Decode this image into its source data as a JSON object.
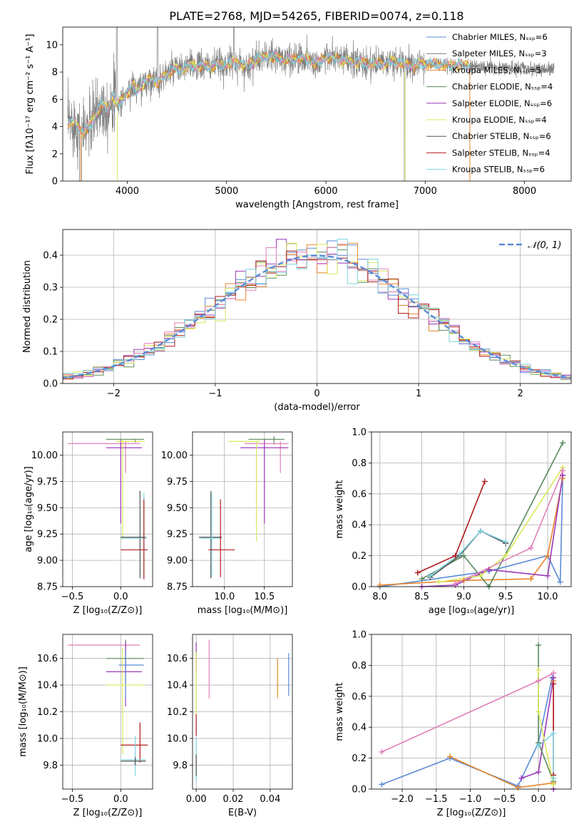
{
  "figure": {
    "title": "PLATE=2768, MJD=54265, FIBERID=0074, z=0.118"
  },
  "colors": {
    "chabrier_miles": "#5b8bd6",
    "salpeter_miles": "#7f7f7f",
    "kroupa_miles": "#e8852a",
    "chabrier_elodie": "#5a8a5e",
    "salpeter_elodie": "#9b3ab8",
    "kroupa_elodie": "#d9e85a",
    "chabrier_stelib": "#555555",
    "salpeter_stelib": "#b01c1c",
    "kroupa_stelib": "#7fd4e0",
    "pink": "#e07fb8",
    "normal": "#5b8bd6"
  },
  "chart_data": [
    {
      "id": "spectrum",
      "type": "line",
      "title": "PLATE=2768, MJD=54265, FIBERID=0074, z=0.118",
      "xlabel": "wavelength [Angstrom, rest frame]",
      "ylabel": "Flux [fλ10⁻¹⁷ erg cm⁻² s⁻¹ A⁻¹]",
      "xlim": [
        3350,
        8470
      ],
      "ylim": [
        0,
        11.3
      ],
      "xticks": [
        "4000",
        "5000",
        "6000",
        "7000",
        "8000"
      ],
      "yticks": [
        "0",
        "2",
        "4",
        "6",
        "8",
        "10"
      ],
      "grid": false,
      "legend_position": "right",
      "legend": [
        "Chabrier MILES, Nₛₛₚ=6",
        "Salpeter MILES, Nₛₛₚ=3",
        "Kroupa MILES, Nₛₛₚ=5",
        "Chabrier ELODIE, Nₛₛₚ=4",
        "Salpeter ELODIE, Nₛₛₚ=6",
        "Kroupa ELODIE, Nₛₛₚ=4",
        "Chabrier STELIB, Nₛₛₚ=6",
        "Salpeter STELIB, Nₛₛₚ=4",
        "Kroupa STELIB, Nₛₛₚ=6"
      ],
      "continuum": [
        [
          3400,
          4.2
        ],
        [
          3450,
          4.4
        ],
        [
          3500,
          4.0
        ],
        [
          3550,
          3.6
        ],
        [
          3600,
          3.9
        ],
        [
          3650,
          4.4
        ],
        [
          3700,
          5.2
        ],
        [
          3750,
          5.6
        ],
        [
          3800,
          5.3
        ],
        [
          3850,
          6.3
        ],
        [
          3900,
          5.6
        ],
        [
          3950,
          6.0
        ],
        [
          4000,
          6.5
        ],
        [
          4050,
          7.0
        ],
        [
          4100,
          6.7
        ],
        [
          4150,
          7.1
        ],
        [
          4200,
          7.3
        ],
        [
          4250,
          7.6
        ],
        [
          4300,
          7.2
        ],
        [
          4350,
          7.6
        ],
        [
          4400,
          7.9
        ],
        [
          4450,
          8.1
        ],
        [
          4500,
          8.2
        ],
        [
          4550,
          8.2
        ],
        [
          4600,
          8.4
        ],
        [
          4700,
          8.5
        ],
        [
          4800,
          8.4
        ],
        [
          4900,
          8.5
        ],
        [
          5000,
          8.6
        ],
        [
          5100,
          8.7
        ],
        [
          5200,
          8.4
        ],
        [
          5300,
          8.9
        ],
        [
          5400,
          9.1
        ],
        [
          5500,
          9.1
        ],
        [
          5600,
          8.9
        ],
        [
          5700,
          9.0
        ],
        [
          5800,
          9.0
        ],
        [
          5900,
          8.6
        ],
        [
          6000,
          9.1
        ],
        [
          6100,
          9.0
        ],
        [
          6200,
          8.8
        ],
        [
          6300,
          8.7
        ],
        [
          6400,
          8.6
        ],
        [
          6500,
          8.6
        ],
        [
          6600,
          8.6
        ],
        [
          6700,
          8.8
        ],
        [
          6800,
          8.5
        ],
        [
          6900,
          8.5
        ],
        [
          7000,
          8.6
        ],
        [
          7100,
          8.6
        ],
        [
          7200,
          8.5
        ],
        [
          7300,
          8.5
        ],
        [
          7400,
          8.5
        ],
        [
          7500,
          8.4
        ],
        [
          7600,
          8.4
        ],
        [
          7700,
          8.3
        ],
        [
          7800,
          8.3
        ],
        [
          7900,
          8.3
        ],
        [
          8000,
          8.3
        ],
        [
          8100,
          8.2
        ],
        [
          8200,
          8.2
        ],
        [
          8300,
          8.2
        ]
      ],
      "data_range": [
        3400,
        8300
      ]
    },
    {
      "id": "residuals",
      "type": "line",
      "xlabel": "(data-model)/error",
      "ylabel": "Normed distribution",
      "xlim": [
        -2.5,
        2.5
      ],
      "ylim": [
        0,
        0.48
      ],
      "xticks": [
        "−2",
        "−1",
        "0",
        "1",
        "2"
      ],
      "yticks": [
        "0.0",
        "0.1",
        "0.2",
        "0.3",
        "0.4"
      ],
      "grid": true,
      "legend": [
        "𝒩(0, 1)"
      ],
      "legend_position": "top-right",
      "bin_width": 0.1,
      "normal": {
        "mean": 0,
        "sigma": 1
      }
    },
    {
      "id": "age_vs_z",
      "type": "scatter",
      "xlabel": "Z [log₁₀(Z/Z⊙)]",
      "ylabel": "age  [log₁₀(age/yr)]",
      "xlim": [
        -0.6,
        0.33
      ],
      "ylim": [
        8.75,
        10.22
      ],
      "xticks": [
        "−0.5",
        "0.0"
      ],
      "yticks": [
        "8.75",
        "9.00",
        "9.25",
        "9.50",
        "9.75",
        "10.00"
      ],
      "grid": true,
      "crosses": [
        {
          "x": 0.15,
          "y": 10.15,
          "x0": -0.15,
          "x1": 0.24,
          "y0": 10.12,
          "y1": 10.15,
          "color": "chabrier_elodie"
        },
        {
          "x": 0.05,
          "y": 10.11,
          "x0": -0.55,
          "x1": 0.2,
          "y0": 9.83,
          "y1": 10.13,
          "color": "pink"
        },
        {
          "x": 0.0,
          "y": 10.07,
          "x0": -0.15,
          "x1": 0.22,
          "y0": 9.35,
          "y1": 10.15,
          "color": "salpeter_elodie"
        },
        {
          "x": 0.02,
          "y": 10.13,
          "x0": -0.05,
          "x1": 0.25,
          "y0": 9.2,
          "y1": 10.15,
          "color": "kroupa_elodie"
        },
        {
          "x": 0.2,
          "y": 9.22,
          "x0": 0.0,
          "x1": 0.26,
          "y0": 8.83,
          "y1": 9.66,
          "color": "chabrier_stelib"
        },
        {
          "x": 0.24,
          "y": 9.21,
          "x0": 0.0,
          "x1": 0.27,
          "y0": 8.84,
          "y1": 9.64,
          "color": "kroupa_stelib"
        },
        {
          "x": 0.24,
          "y": 9.1,
          "x0": 0.0,
          "x1": 0.28,
          "y0": 8.82,
          "y1": 9.58,
          "color": "salpeter_stelib"
        }
      ]
    },
    {
      "id": "age_vs_mass",
      "type": "scatter",
      "xlabel": "mass [log₁₀(M/M⊙)]",
      "ylabel": "",
      "xlim": [
        9.6,
        10.85
      ],
      "ylim": [
        8.75,
        10.22
      ],
      "xticks": [
        "10.0",
        "10.5"
      ],
      "yticks": [
        "8.75",
        "9.00",
        "9.25",
        "9.50",
        "9.75",
        "10.00"
      ],
      "grid": true,
      "crosses": [
        {
          "x": 10.62,
          "y": 10.15,
          "x0": 10.3,
          "x1": 10.75,
          "y0": 10.1,
          "y1": 10.18,
          "color": "chabrier_elodie"
        },
        {
          "x": 10.7,
          "y": 10.11,
          "x0": 10.25,
          "x1": 10.8,
          "y0": 9.83,
          "y1": 10.13,
          "color": "pink"
        },
        {
          "x": 10.5,
          "y": 10.07,
          "x0": 10.2,
          "x1": 10.8,
          "y0": 9.35,
          "y1": 10.15,
          "color": "salpeter_elodie"
        },
        {
          "x": 10.4,
          "y": 10.13,
          "x0": 10.05,
          "x1": 10.45,
          "y0": 9.18,
          "y1": 10.13,
          "color": "kroupa_elodie"
        },
        {
          "x": 9.83,
          "y": 9.22,
          "x0": 9.68,
          "x1": 9.97,
          "y0": 8.83,
          "y1": 9.66,
          "color": "chabrier_stelib"
        },
        {
          "x": 9.84,
          "y": 9.21,
          "x0": 9.7,
          "x1": 9.96,
          "y0": 8.84,
          "y1": 9.64,
          "color": "kroupa_stelib"
        },
        {
          "x": 9.95,
          "y": 9.1,
          "x0": 9.8,
          "x1": 10.13,
          "y0": 8.84,
          "y1": 9.58,
          "color": "salpeter_stelib"
        }
      ]
    },
    {
      "id": "weight_vs_age",
      "type": "line",
      "xlabel": "age  [log₁₀(age/yr)]",
      "ylabel": "mass weight",
      "xlim": [
        7.9,
        10.28
      ],
      "ylim": [
        0,
        1.0
      ],
      "xticks": [
        "8.0",
        "8.5",
        "9.0",
        "9.5",
        "10.0"
      ],
      "yticks": [
        "0.0",
        "0.2",
        "0.4",
        "0.6",
        "0.8",
        "1.0"
      ],
      "grid": true,
      "series": [
        {
          "color": "chabrier_miles",
          "points": [
            [
              8.0,
              0.0
            ],
            [
              9.3,
              0.1
            ],
            [
              10.0,
              0.2
            ],
            [
              10.15,
              0.03
            ],
            [
              10.18,
              0.72
            ]
          ]
        },
        {
          "color": "kroupa_miles",
          "points": [
            [
              8.0,
              0.01
            ],
            [
              9.0,
              0.04
            ],
            [
              9.8,
              0.05
            ],
            [
              10.0,
              0.2
            ],
            [
              10.18,
              0.7
            ]
          ]
        },
        {
          "color": "chabrier_elodie",
          "points": [
            [
              8.5,
              0.05
            ],
            [
              9.0,
              0.2
            ],
            [
              9.3,
              0.0
            ],
            [
              10.18,
              0.93
            ]
          ]
        },
        {
          "color": "salpeter_elodie",
          "points": [
            [
              8.5,
              0.0
            ],
            [
              8.9,
              0.01
            ],
            [
              9.3,
              0.11
            ],
            [
              10.0,
              0.07
            ],
            [
              10.18,
              0.72
            ]
          ]
        },
        {
          "color": "kroupa_elodie",
          "points": [
            [
              8.7,
              0.03
            ],
            [
              9.2,
              0.07
            ],
            [
              9.5,
              0.2
            ],
            [
              10.18,
              0.77
            ]
          ]
        },
        {
          "color": "pink",
          "points": [
            [
              8.9,
              0.02
            ],
            [
              9.8,
              0.25
            ],
            [
              10.18,
              0.75
            ]
          ]
        },
        {
          "color": "salpeter_stelib",
          "points": [
            [
              8.45,
              0.09
            ],
            [
              8.9,
              0.2
            ],
            [
              9.25,
              0.68
            ]
          ]
        },
        {
          "color": "chabrier_stelib",
          "points": [
            [
              8.6,
              0.06
            ],
            [
              8.95,
              0.2
            ],
            [
              9.2,
              0.36
            ],
            [
              9.5,
              0.28
            ]
          ]
        },
        {
          "color": "kroupa_stelib",
          "points": [
            [
              8.6,
              0.07
            ],
            [
              8.95,
              0.21
            ],
            [
              9.2,
              0.36
            ],
            [
              9.5,
              0.29
            ]
          ]
        }
      ]
    },
    {
      "id": "mass_vs_z",
      "type": "scatter",
      "xlabel": "Z [log₁₀(Z/Z⊙)]",
      "ylabel": "mass [log₁₀(M/M⊙)]",
      "xlim": [
        -0.6,
        0.33
      ],
      "ylim": [
        9.62,
        10.78
      ],
      "xticks": [
        "−0.5",
        "0.0"
      ],
      "yticks": [
        "9.8",
        "10.0",
        "10.2",
        "10.4",
        "10.6"
      ],
      "grid": true,
      "crosses": [
        {
          "x": 0.05,
          "y": 10.7,
          "x0": -0.55,
          "x1": 0.2,
          "y0": 10.55,
          "y1": 10.74,
          "color": "pink"
        },
        {
          "x": 0.05,
          "y": 10.6,
          "x0": -0.15,
          "x1": 0.24,
          "y0": 10.42,
          "y1": 10.74,
          "color": "chabrier_elodie"
        },
        {
          "x": 0.05,
          "y": 10.5,
          "x0": -0.15,
          "x1": 0.22,
          "y0": 10.24,
          "y1": 10.72,
          "color": "salpeter_elodie"
        },
        {
          "x": 0.05,
          "y": 10.55,
          "x0": -0.02,
          "x1": 0.24,
          "y0": 10.3,
          "y1": 10.66,
          "color": "chabrier_miles"
        },
        {
          "x": 0.02,
          "y": 10.4,
          "x0": -0.15,
          "x1": 0.25,
          "y0": 9.88,
          "y1": 10.68,
          "color": "kroupa_elodie"
        },
        {
          "x": 0.2,
          "y": 9.95,
          "x0": 0.0,
          "x1": 0.28,
          "y0": 9.82,
          "y1": 10.12,
          "color": "salpeter_stelib"
        },
        {
          "x": 0.15,
          "y": 9.84,
          "x0": 0.0,
          "x1": 0.26,
          "y0": 9.72,
          "y1": 10.02,
          "color": "kroupa_stelib"
        },
        {
          "x": 0.15,
          "y": 9.83,
          "x0": 0.0,
          "x1": 0.26,
          "y0": 9.8,
          "y1": 9.86,
          "color": "chabrier_stelib"
        }
      ]
    },
    {
      "id": "mass_vs_ebv",
      "type": "scatter",
      "xlabel": "E(B-V)",
      "ylabel": "",
      "xlim": [
        -0.002,
        0.052
      ],
      "ylim": [
        9.62,
        10.78
      ],
      "xticks": [
        "0.00",
        "0.02",
        "0.04"
      ],
      "yticks": [
        "9.8",
        "10.0",
        "10.2",
        "10.4",
        "10.6"
      ],
      "grid": true,
      "crosses": [
        {
          "x": 0.0,
          "y": 10.6,
          "x0": 0.0,
          "x1": 0.0,
          "y0": 10.5,
          "y1": 10.72,
          "color": "salpeter_elodie"
        },
        {
          "x": 0.0,
          "y": 10.4,
          "x0": 0.0,
          "x1": 0.0,
          "y0": 10.18,
          "y1": 10.65,
          "color": "kroupa_elodie"
        },
        {
          "x": 0.0,
          "y": 10.1,
          "x0": 0.0,
          "x1": 0.0,
          "y0": 10.02,
          "y1": 10.18,
          "color": "salpeter_stelib"
        },
        {
          "x": 0.0,
          "y": 9.85,
          "x0": 0.0,
          "x1": 0.0,
          "y0": 9.68,
          "y1": 10.0,
          "color": "kroupa_stelib"
        },
        {
          "x": 0.0,
          "y": 9.8,
          "x0": 0.0,
          "x1": 0.0,
          "y0": 9.72,
          "y1": 9.88,
          "color": "chabrier_stelib"
        },
        {
          "x": 0.007,
          "y": 10.5,
          "x0": 0.007,
          "x1": 0.007,
          "y0": 10.3,
          "y1": 10.74,
          "color": "pink"
        },
        {
          "x": 0.044,
          "y": 10.45,
          "x0": 0.044,
          "x1": 0.044,
          "y0": 10.3,
          "y1": 10.6,
          "color": "kroupa_miles"
        },
        {
          "x": 0.05,
          "y": 10.48,
          "x0": 0.05,
          "x1": 0.05,
          "y0": 10.32,
          "y1": 10.64,
          "color": "chabrier_miles"
        }
      ]
    },
    {
      "id": "weight_vs_z",
      "type": "line",
      "xlabel": "Z [log₁₀(Z/Z⊙)]",
      "ylabel": "mass weight",
      "xlim": [
        -2.45,
        0.48
      ],
      "ylim": [
        0,
        1.0
      ],
      "xticks": [
        "−2.0",
        "−1.5",
        "−1.0",
        "−0.5",
        "0.0"
      ],
      "yticks": [
        "0.0",
        "0.2",
        "0.4",
        "0.6",
        "0.8",
        "1.0"
      ],
      "grid": true,
      "series": [
        {
          "color": "chabrier_miles",
          "points": [
            [
              -2.3,
              0.03
            ],
            [
              -1.3,
              0.2
            ],
            [
              -0.3,
              0.02
            ],
            [
              0.0,
              0.3
            ],
            [
              0.2,
              0.72
            ]
          ]
        },
        {
          "color": "pink",
          "points": [
            [
              -2.3,
              0.24
            ],
            [
              0.0,
              0.7
            ],
            [
              0.22,
              0.75
            ]
          ]
        },
        {
          "color": "kroupa_miles",
          "points": [
            [
              -1.3,
              0.21
            ],
            [
              -0.3,
              0.01
            ],
            [
              0.22,
              0.04
            ],
            [
              0.22,
              0.7
            ]
          ]
        },
        {
          "color": "salpeter_elodie",
          "points": [
            [
              -0.25,
              0.07
            ],
            [
              0.0,
              0.11
            ],
            [
              0.22,
              0.72
            ],
            [
              0.22,
              0.0
            ]
          ]
        },
        {
          "color": "chabrier_elodie",
          "points": [
            [
              0.0,
              0.93
            ],
            [
              0.0,
              0.3
            ],
            [
              0.22,
              0.05
            ]
          ]
        },
        {
          "color": "kroupa_elodie",
          "points": [
            [
              0.0,
              0.77
            ],
            [
              0.0,
              0.5
            ],
            [
              0.22,
              0.03
            ]
          ]
        },
        {
          "color": "salpeter_stelib",
          "points": [
            [
              0.22,
              0.68
            ],
            [
              0.22,
              0.09
            ]
          ]
        },
        {
          "color": "kroupa_stelib",
          "points": [
            [
              0.0,
              0.28
            ],
            [
              0.22,
              0.36
            ],
            [
              0.22,
              0.07
            ]
          ]
        }
      ]
    }
  ]
}
